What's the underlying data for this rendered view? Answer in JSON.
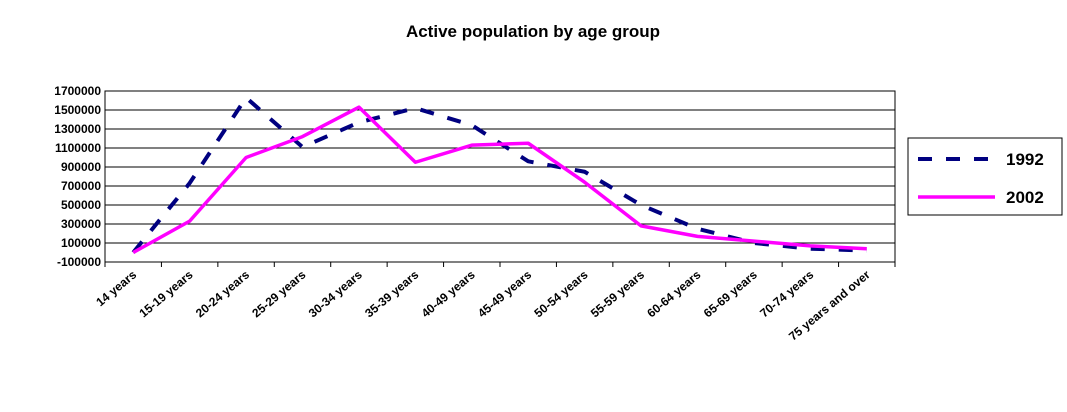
{
  "chart_data": {
    "type": "line",
    "title": "Active population by age group",
    "categories": [
      "14 years",
      "15-19 years",
      "20-24 years",
      "25-29 years",
      "30-34 years",
      "35-39 years",
      "40-49 years",
      "45-49 years",
      "50-54 years",
      "55-59 years",
      "60-64 years",
      "65-69 years",
      "70-74 years",
      "75 years and over"
    ],
    "series": [
      {
        "name": "1992",
        "color": "#000080",
        "dashed": true,
        "values": [
          0,
          730000,
          1630000,
          1110000,
          1370000,
          1520000,
          1340000,
          960000,
          850000,
          500000,
          250000,
          100000,
          40000,
          20000
        ]
      },
      {
        "name": "2002",
        "color": "#ff00ff",
        "dashed": false,
        "values": [
          0,
          330000,
          1000000,
          1220000,
          1530000,
          950000,
          1130000,
          1150000,
          740000,
          280000,
          170000,
          120000,
          70000,
          40000
        ]
      }
    ],
    "ylim": [
      -100000,
      1700000
    ],
    "yticks": [
      -100000,
      100000,
      300000,
      500000,
      700000,
      900000,
      1100000,
      1300000,
      1500000,
      1700000
    ],
    "grid": true,
    "legend": "right"
  }
}
